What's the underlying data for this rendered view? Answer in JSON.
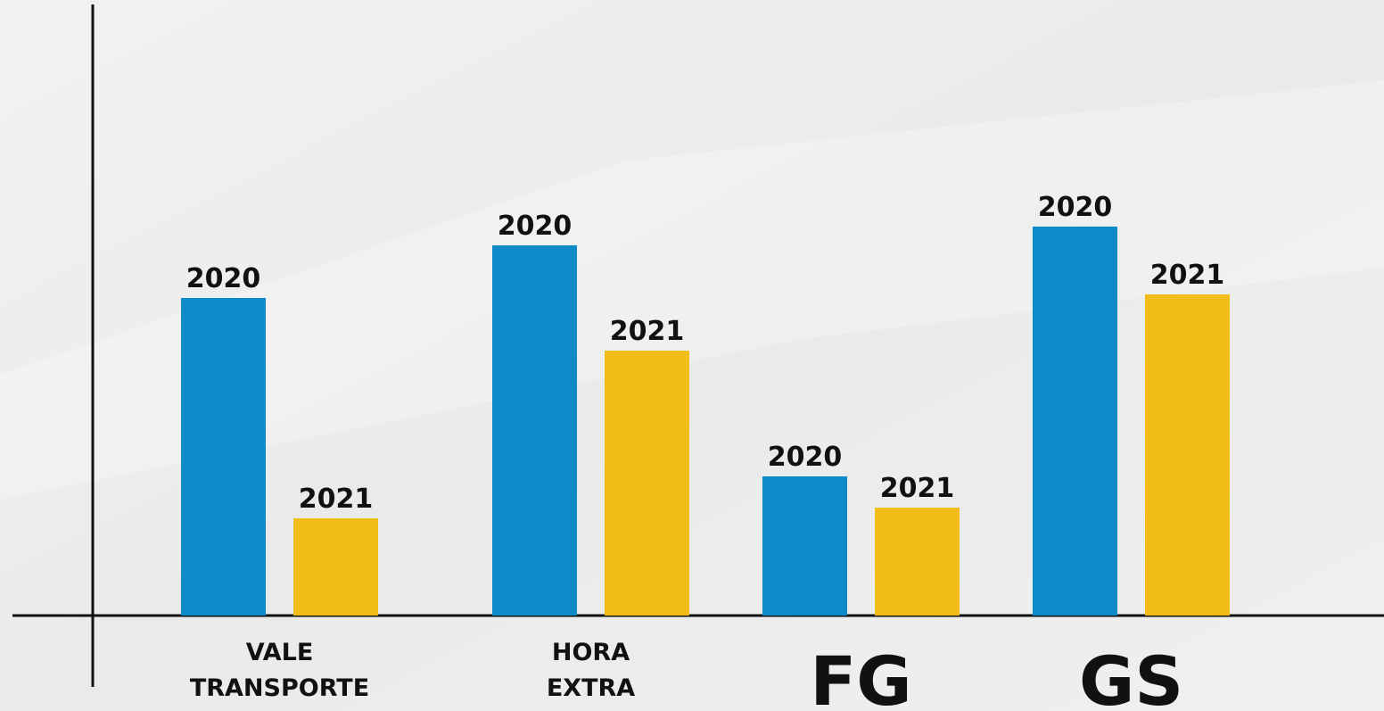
{
  "chart_data": {
    "type": "bar",
    "categories": [
      "VALE TRANSPORTE",
      "HORA EXTRA",
      "FG",
      "GS"
    ],
    "series": [
      {
        "name": "2020",
        "color": "#0f8ac9",
        "values": [
          356,
          415,
          156,
          436
        ]
      },
      {
        "name": "2021",
        "color": "#f2bc19",
        "values": [
          109,
          297,
          121,
          360
        ]
      }
    ],
    "ylim": [
      0,
      685
    ]
  }
}
